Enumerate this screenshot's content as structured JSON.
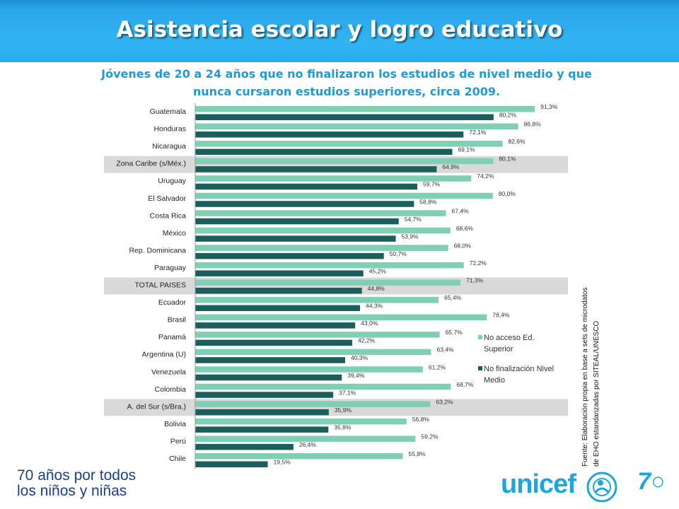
{
  "header": {
    "title": "Asistencia escolar y logro educativo",
    "subtitle_line1": "Jóvenes de 20 a 24 años que no finalizaron los estudios de nivel medio y que",
    "subtitle_line2": "nunca cursaron estudios superiores, circa 2009."
  },
  "colors": {
    "header_blue": "#31b4f2",
    "title_text": "#ffffff",
    "subtitle_text": "#1f9ad6",
    "series_light": "#7fcfb5",
    "series_dark": "#1b5e5c",
    "highlight_band": "#d9d9d9",
    "unicef_blue": "#1ca6e0",
    "footer_text": "#1c3f8c"
  },
  "chart_data": {
    "type": "bar",
    "orientation": "horizontal",
    "categories": [
      "Guatemala",
      "Honduras",
      "Nicaragua",
      "Zona Caribe (s/Méx.)",
      "Uruguay",
      "El Salvador",
      "Costa Rica",
      "México",
      "Rep. Dominicana",
      "Paraguay",
      "TOTAL PAISES",
      "Ecuador",
      "Brasil",
      "Panamá",
      "Argentina (U)",
      "Venezuela",
      "Colombia",
      "A. del Sur (s/Bra.)",
      "Bolivia",
      "Perú",
      "Chile"
    ],
    "highlighted": [
      "Zona Caribe (s/Méx.)",
      "TOTAL PAISES",
      "A. del Sur (s/Bra.)"
    ],
    "series": [
      {
        "name": "No acceso Ed. Superior",
        "color": "#7fcfb5",
        "values": [
          91.3,
          86.8,
          82.6,
          80.1,
          74.2,
          80.0,
          67.4,
          68.6,
          68.0,
          72.2,
          71.3,
          65.4,
          78.4,
          65.7,
          63.4,
          61.2,
          68.7,
          63.2,
          56.8,
          59.2,
          55.8
        ],
        "labels": [
          "91,3%",
          "86,8%",
          "82,6%",
          "80,1%",
          "74,2%",
          "80,0%",
          "67,4%",
          "68,6%",
          "68,0%",
          "72,2%",
          "71,3%",
          "65,4%",
          "78,4%",
          "65,7%",
          "63,4%",
          "61,2%",
          "68,7%",
          "63,2%",
          "56,8%",
          "59,2%",
          "55,8%"
        ]
      },
      {
        "name": "No finalización Nivel Medio",
        "color": "#1b5e5c",
        "values": [
          80.2,
          72.1,
          69.1,
          64.9,
          59.7,
          58.8,
          54.7,
          53.9,
          50.7,
          45.2,
          44.8,
          44.3,
          43.0,
          42.2,
          40.3,
          39.4,
          37.1,
          35.9,
          35.8,
          26.4,
          19.5
        ],
        "labels": [
          "80,2%",
          "72,1%",
          "69,1%",
          "64,9%",
          "59,7%",
          "58,8%",
          "54,7%",
          "53,9%",
          "50,7%",
          "45,2%",
          "44,8%",
          "44,3%",
          "43,0%",
          "42,2%",
          "40,3%",
          "39,4%",
          "37,1%",
          "35,9%",
          "35,8%",
          "26,4%",
          "19,5%"
        ]
      }
    ],
    "legend": [
      {
        "line1": "No acceso Ed.",
        "line2": "Superior",
        "color": "#7fcfb5"
      },
      {
        "line1": "No finalización Nivel",
        "line2": "Medio",
        "color": "#1b5e5c"
      }
    ],
    "legend_position": "right",
    "source_line1": "Fuente: Elaboración propia en base a sets de microdatos",
    "source_line2": "de EHO estandarizadas por SITEAL/UNESCO",
    "grid": false
  },
  "footer": {
    "line1": "70 años por todos",
    "line2": "los niños y niñas",
    "logo": "unicef"
  }
}
